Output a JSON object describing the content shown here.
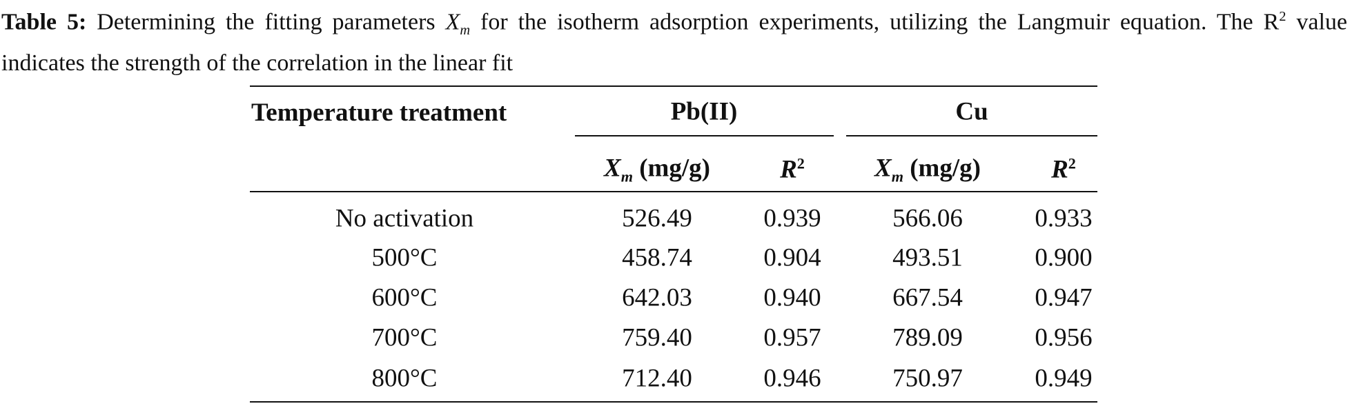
{
  "caption": {
    "label": "Table 5:",
    "text_before": "Determining the fitting parameters",
    "symbol": "X",
    "symbol_sub": "m",
    "text_mid": "for the isotherm adsorption experiments, utilizing the Langmuir equation. The R",
    "sup": "2",
    "text_after": "value indicates the strength of the correlation in the linear fit"
  },
  "table": {
    "header": {
      "row_label": "Temperature treatment",
      "groups": [
        "Pb(II)",
        "Cu"
      ],
      "sub": [
        {
          "symbol": "X",
          "symbol_sub": "m",
          "unit": "(mg/g)"
        },
        {
          "symbol": "R",
          "sup": "2"
        },
        {
          "symbol": "X",
          "symbol_sub": "m",
          "unit": "(mg/g)"
        },
        {
          "symbol": "R",
          "sup": "2"
        }
      ]
    },
    "rows": [
      [
        "No activation",
        "526.49",
        "0.939",
        "566.06",
        "0.933"
      ],
      [
        "500°C",
        "458.74",
        "0.904",
        "493.51",
        "0.900"
      ],
      [
        "600°C",
        "642.03",
        "0.940",
        "667.54",
        "0.947"
      ],
      [
        "700°C",
        "759.40",
        "0.957",
        "789.09",
        "0.956"
      ],
      [
        "800°C",
        "712.40",
        "0.946",
        "750.97",
        "0.949"
      ]
    ]
  }
}
